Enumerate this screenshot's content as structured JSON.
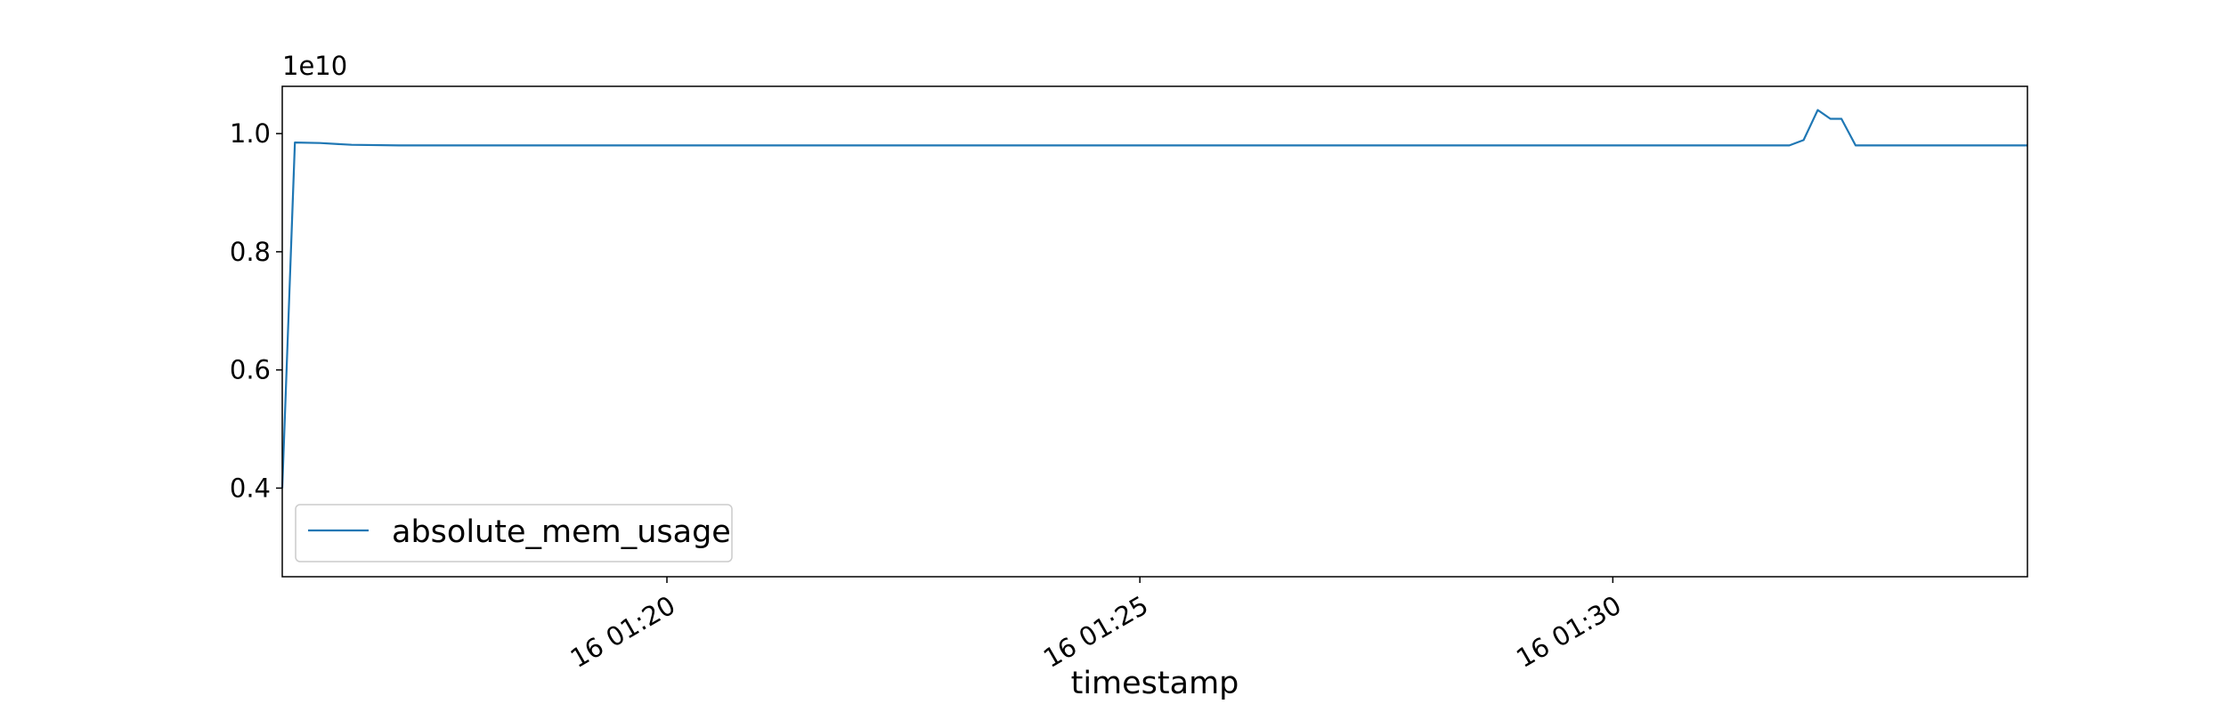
{
  "chart_data": {
    "type": "line",
    "title": "",
    "xlabel": "timestamp",
    "ylabel": "",
    "y_scale_label": "1e10",
    "y_scale": 10000000000.0,
    "xlim": [
      "16 01:15:56",
      "16 01:34:23"
    ],
    "ylim": [
      0.25,
      1.08
    ],
    "x_ticks": [
      {
        "t": "16 01:20:00",
        "label": "16 01:20"
      },
      {
        "t": "16 01:25:00",
        "label": "16 01:25"
      },
      {
        "t": "16 01:30:00",
        "label": "16 01:30"
      }
    ],
    "y_ticks": [
      {
        "v": 0.4,
        "label": "0.4"
      },
      {
        "v": 0.6,
        "label": "0.6"
      },
      {
        "v": 0.8,
        "label": "0.8"
      },
      {
        "v": 1.0,
        "label": "1.0"
      }
    ],
    "grid": false,
    "legend_position": "lower left",
    "series": [
      {
        "name": "absolute_mem_usage",
        "color": "#1f77b4",
        "points": [
          [
            "16 01:15:56",
            0.4
          ],
          [
            "16 01:16:04",
            0.985
          ],
          [
            "16 01:16:20",
            0.984
          ],
          [
            "16 01:16:40",
            0.981
          ],
          [
            "16 01:17:10",
            0.98
          ],
          [
            "16 01:20:00",
            0.98
          ],
          [
            "16 01:25:00",
            0.98
          ],
          [
            "16 01:30:00",
            0.98
          ],
          [
            "16 01:31:52",
            0.98
          ],
          [
            "16 01:32:01",
            0.989
          ],
          [
            "16 01:32:10",
            1.04
          ],
          [
            "16 01:32:18",
            1.025
          ],
          [
            "16 01:32:25",
            1.025
          ],
          [
            "16 01:32:34",
            0.98
          ],
          [
            "16 01:33:00",
            0.98
          ],
          [
            "16 01:34:23",
            0.98
          ]
        ]
      }
    ]
  }
}
